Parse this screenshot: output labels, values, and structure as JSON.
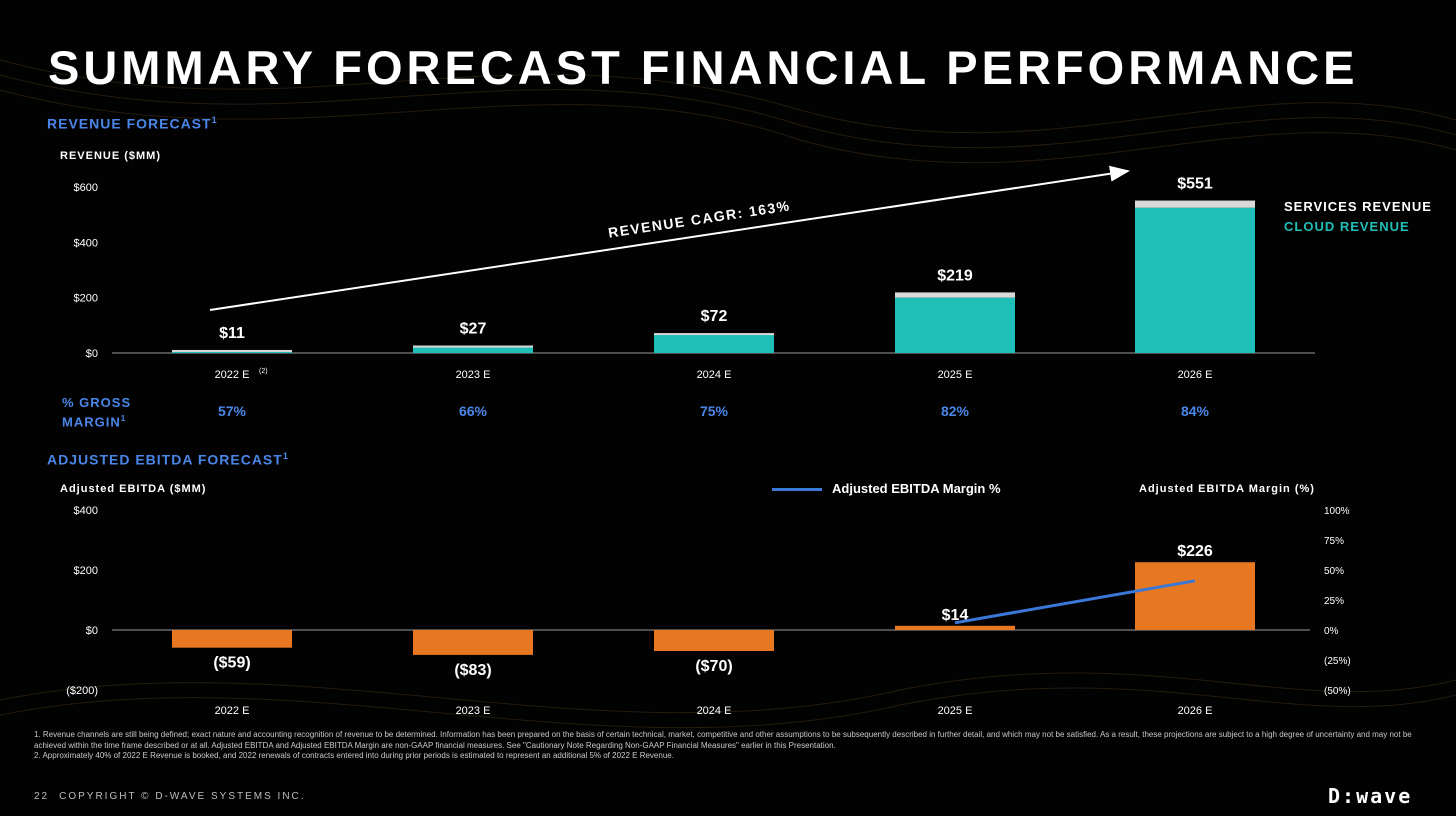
{
  "title": "SUMMARY FORECAST FINANCIAL PERFORMANCE",
  "colors": {
    "accent_blue": "#4a86e8",
    "cloud_revenue": "#1fbfb8",
    "services_revenue": "#d9d9d9",
    "ebitda_bar": "#e87722",
    "margin_line": "#3a78d8",
    "background": "#020202"
  },
  "revenue_section": {
    "heading": "REVENUE FORECAST",
    "heading_sup": "1",
    "axis_title": "REVENUE ($MM)",
    "cagr_label": "REVENUE CAGR: 163%",
    "legend": {
      "services": "SERVICES REVENUE",
      "cloud": "CLOUD REVENUE"
    }
  },
  "gross_margin": {
    "label": "% GROSS MARGIN",
    "label_sup": "1",
    "values": [
      "57%",
      "66%",
      "75%",
      "82%",
      "84%"
    ]
  },
  "ebitda_section": {
    "heading": "ADJUSTED EBITDA FORECAST",
    "heading_sup": "1",
    "axis_title_left": "Adjusted EBITDA ($MM)",
    "axis_title_right": "Adjusted EBITDA Margin (%)",
    "legend_label": "Adjusted EBITDA Margin %"
  },
  "chart_data": [
    {
      "type": "bar",
      "title": "REVENUE FORECAST",
      "ylabel": "REVENUE ($MM)",
      "categories": [
        "2022 E",
        "2023 E",
        "2024 E",
        "2025 E",
        "2026 E"
      ],
      "category_notes": [
        "(2)",
        "",
        "",
        "",
        ""
      ],
      "stacked": true,
      "series": [
        {
          "name": "CLOUD REVENUE",
          "values": [
            9,
            25,
            66,
            200,
            525
          ]
        },
        {
          "name": "SERVICES REVENUE",
          "values": [
            2,
            2,
            6,
            19,
            26
          ]
        }
      ],
      "totals": [
        11,
        27,
        72,
        219,
        551
      ],
      "data_labels": [
        "$11",
        "$27",
        "$72",
        "$219",
        "$551"
      ],
      "yticks": [
        0,
        200,
        400,
        600
      ],
      "ytick_labels": [
        "$0",
        "$200",
        "$400",
        "$600"
      ],
      "ylim": [
        0,
        600
      ],
      "annotation": "REVENUE CAGR: 163%",
      "legend_placement": "right"
    },
    {
      "type": "bar",
      "title": "ADJUSTED EBITDA FORECAST",
      "ylabel": "Adjusted EBITDA ($MM)",
      "categories": [
        "2022 E",
        "2023 E",
        "2024 E",
        "2025 E",
        "2026 E"
      ],
      "series": [
        {
          "name": "Adjusted EBITDA",
          "values": [
            -59,
            -83,
            -70,
            14,
            226
          ]
        }
      ],
      "data_labels": [
        "($59)",
        "($83)",
        "($70)",
        "$14",
        "$226"
      ],
      "yticks": [
        -200,
        0,
        200,
        400
      ],
      "ytick_labels": [
        "($200)",
        "$0",
        "$200",
        "$400"
      ],
      "ylim": [
        -200,
        400
      ],
      "secondary_axis": {
        "label": "Adjusted EBITDA Margin (%)",
        "ticks": [
          -50,
          -25,
          0,
          25,
          50,
          75,
          100
        ],
        "tick_labels": [
          "(50%)",
          "(25%)",
          "0%",
          "25%",
          "50%",
          "75%",
          "100%"
        ],
        "ylim": [
          -50,
          100
        ]
      },
      "line_series": {
        "name": "Adjusted EBITDA Margin %",
        "categories": [
          "2025 E",
          "2026 E"
        ],
        "values": [
          6,
          41
        ]
      },
      "legend_placement": "top-center"
    }
  ],
  "footnotes": [
    "1.  Revenue channels are still being defined; exact nature and accounting recognition of revenue to be determined. Information has been prepared on the basis of certain technical, market, competitive and other assumptions to be subsequently described in further detail, and which may not be satisfied. As a result, these projections are subject to a high degree of uncertainty and may not be achieved within the time frame described or at all. Adjusted EBITDA and Adjusted EBITDA Margin are non-GAAP financial measures. See \"Cautionary Note Regarding Non-GAAP Financial Measures\" earlier in this Presentation.",
    "2.  Approximately 40% of 2022 E Revenue is booked, and 2022 renewals of contracts entered into during prior periods is estimated to represent an additional 5% of 2022 E Revenue."
  ],
  "footer": {
    "page_number": "22",
    "copyright": "COPYRIGHT © D-WAVE SYSTEMS INC.",
    "logo": "D:wave"
  }
}
